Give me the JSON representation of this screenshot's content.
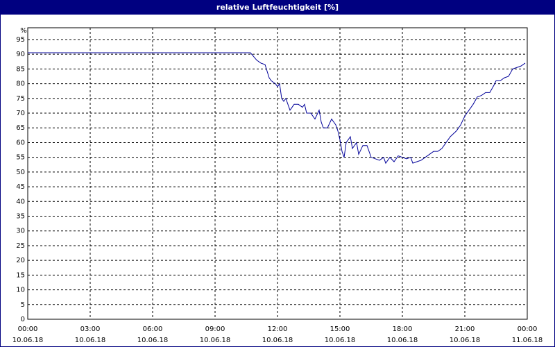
{
  "chart_data": {
    "type": "line",
    "title": "relative Luftfeuchtigkeit [%]",
    "y_unit": "%",
    "x": [
      0,
      10.7,
      11.0,
      11.2,
      11.4,
      11.6,
      11.7,
      11.9,
      12.0,
      12.1,
      12.2,
      12.3,
      12.4,
      12.6,
      12.8,
      13.0,
      13.2,
      13.3,
      13.4,
      13.6,
      13.8,
      14.0,
      14.1,
      14.2,
      14.4,
      14.6,
      14.8,
      14.9,
      15.0,
      15.1,
      15.2,
      15.3,
      15.5,
      15.6,
      15.8,
      15.9,
      16.1,
      16.3,
      16.5,
      16.7,
      16.9,
      17.1,
      17.2,
      17.4,
      17.6,
      17.8,
      18.0,
      18.2,
      18.4,
      18.5,
      18.7,
      18.9,
      19.1,
      19.3,
      19.5,
      19.7,
      19.9,
      20.1,
      20.3,
      20.6,
      20.8,
      21.0,
      21.2,
      21.4,
      21.6,
      21.8,
      22.0,
      22.2,
      22.4,
      22.5,
      22.7,
      22.9,
      23.1,
      23.3,
      23.5,
      23.7,
      23.9
    ],
    "series": [
      {
        "name": "relative Luftfeuchtigkeit",
        "color": "#000099",
        "values": [
          90.5,
          90.5,
          88,
          87,
          86.5,
          82,
          81,
          80,
          79,
          80,
          75,
          74,
          75,
          71,
          73,
          73,
          72,
          73,
          70,
          70,
          68,
          71,
          67,
          65,
          65,
          68,
          66,
          64,
          61,
          57,
          55,
          60,
          62,
          58,
          60,
          56,
          59,
          59,
          55,
          54.5,
          54,
          55,
          53,
          55,
          53.5,
          55.5,
          55,
          54.5,
          55,
          53,
          53.5,
          54,
          55,
          56,
          57,
          57,
          58,
          60,
          62,
          64,
          66,
          69,
          71,
          73,
          75.5,
          76,
          77,
          77,
          79.5,
          81,
          81,
          82,
          82.5,
          85,
          85.5,
          86,
          87
        ]
      }
    ],
    "xlim": [
      0,
      24
    ],
    "xticks": [
      {
        "value": 0,
        "label": "00:00",
        "date": "10.06.18"
      },
      {
        "value": 3,
        "label": "03:00",
        "date": "10.06.18"
      },
      {
        "value": 6,
        "label": "06:00",
        "date": "10.06.18"
      },
      {
        "value": 9,
        "label": "09:00",
        "date": "10.06.18"
      },
      {
        "value": 12,
        "label": "12:00",
        "date": "10.06.18"
      },
      {
        "value": 15,
        "label": "15:00",
        "date": "10.06.18"
      },
      {
        "value": 18,
        "label": "18:00",
        "date": "10.06.18"
      },
      {
        "value": 21,
        "label": "21:00",
        "date": "10.06.18"
      },
      {
        "value": 24,
        "label": "00:00",
        "date": "11.06.18"
      }
    ],
    "ylim": [
      0,
      99
    ],
    "yticks": [
      0,
      5,
      10,
      15,
      20,
      25,
      30,
      35,
      40,
      45,
      50,
      55,
      60,
      65,
      70,
      75,
      80,
      85,
      90,
      95
    ],
    "grid": true
  }
}
